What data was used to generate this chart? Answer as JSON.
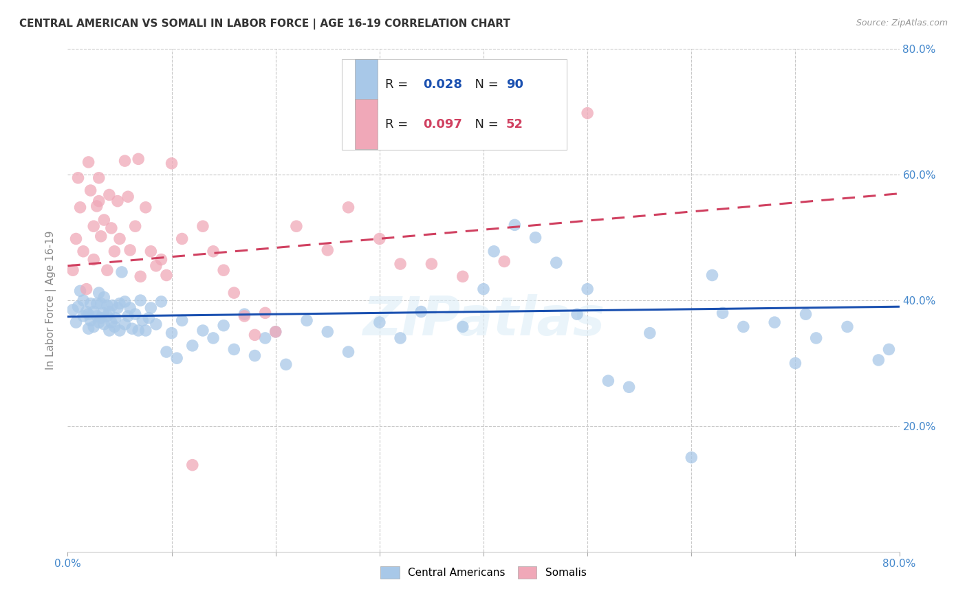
{
  "title": "CENTRAL AMERICAN VS SOMALI IN LABOR FORCE | AGE 16-19 CORRELATION CHART",
  "source_text": "Source: ZipAtlas.com",
  "ylabel": "In Labor Force | Age 16-19",
  "xlim": [
    0.0,
    0.8
  ],
  "ylim": [
    0.0,
    0.8
  ],
  "legend_blue_label": "Central Americans",
  "legend_pink_label": "Somalis",
  "R_blue": 0.028,
  "N_blue": 90,
  "R_pink": 0.097,
  "N_pink": 52,
  "blue_color": "#a8c8e8",
  "pink_color": "#f0a8b8",
  "blue_line_color": "#1a50b0",
  "pink_line_color": "#d04060",
  "watermark": "ZIPatlas",
  "background_color": "#ffffff",
  "grid_color": "#c8c8c8",
  "blue_scatter_x": [
    0.005,
    0.008,
    0.01,
    0.012,
    0.015,
    0.015,
    0.018,
    0.02,
    0.02,
    0.022,
    0.022,
    0.025,
    0.025,
    0.028,
    0.028,
    0.03,
    0.03,
    0.032,
    0.032,
    0.034,
    0.035,
    0.035,
    0.038,
    0.038,
    0.04,
    0.04,
    0.042,
    0.043,
    0.045,
    0.046,
    0.048,
    0.05,
    0.05,
    0.052,
    0.055,
    0.055,
    0.058,
    0.06,
    0.062,
    0.065,
    0.068,
    0.07,
    0.072,
    0.075,
    0.078,
    0.08,
    0.085,
    0.09,
    0.095,
    0.1,
    0.105,
    0.11,
    0.12,
    0.13,
    0.14,
    0.15,
    0.16,
    0.17,
    0.18,
    0.19,
    0.2,
    0.21,
    0.23,
    0.25,
    0.27,
    0.3,
    0.32,
    0.34,
    0.38,
    0.4,
    0.41,
    0.43,
    0.45,
    0.47,
    0.49,
    0.5,
    0.52,
    0.54,
    0.56,
    0.6,
    0.62,
    0.63,
    0.65,
    0.68,
    0.7,
    0.71,
    0.72,
    0.75,
    0.78,
    0.79
  ],
  "blue_scatter_y": [
    0.385,
    0.365,
    0.39,
    0.415,
    0.375,
    0.4,
    0.382,
    0.355,
    0.378,
    0.368,
    0.395,
    0.382,
    0.358,
    0.375,
    0.395,
    0.365,
    0.412,
    0.372,
    0.395,
    0.38,
    0.362,
    0.405,
    0.375,
    0.392,
    0.352,
    0.382,
    0.365,
    0.392,
    0.358,
    0.372,
    0.388,
    0.352,
    0.395,
    0.445,
    0.398,
    0.362,
    0.375,
    0.388,
    0.355,
    0.378,
    0.352,
    0.4,
    0.368,
    0.352,
    0.372,
    0.388,
    0.362,
    0.398,
    0.318,
    0.348,
    0.308,
    0.368,
    0.328,
    0.352,
    0.34,
    0.36,
    0.322,
    0.378,
    0.312,
    0.34,
    0.35,
    0.298,
    0.368,
    0.35,
    0.318,
    0.365,
    0.34,
    0.382,
    0.358,
    0.418,
    0.478,
    0.52,
    0.5,
    0.46,
    0.378,
    0.418,
    0.272,
    0.262,
    0.348,
    0.15,
    0.44,
    0.38,
    0.358,
    0.365,
    0.3,
    0.378,
    0.34,
    0.358,
    0.305,
    0.322
  ],
  "pink_scatter_x": [
    0.005,
    0.008,
    0.01,
    0.012,
    0.015,
    0.018,
    0.02,
    0.022,
    0.025,
    0.025,
    0.028,
    0.03,
    0.03,
    0.032,
    0.035,
    0.038,
    0.04,
    0.042,
    0.045,
    0.048,
    0.05,
    0.055,
    0.058,
    0.06,
    0.065,
    0.068,
    0.07,
    0.075,
    0.08,
    0.085,
    0.09,
    0.095,
    0.1,
    0.11,
    0.12,
    0.13,
    0.14,
    0.15,
    0.16,
    0.17,
    0.18,
    0.19,
    0.2,
    0.22,
    0.25,
    0.27,
    0.3,
    0.32,
    0.35,
    0.38,
    0.42,
    0.5
  ],
  "pink_scatter_y": [
    0.448,
    0.498,
    0.595,
    0.548,
    0.478,
    0.418,
    0.62,
    0.575,
    0.518,
    0.465,
    0.55,
    0.595,
    0.558,
    0.502,
    0.528,
    0.448,
    0.568,
    0.515,
    0.478,
    0.558,
    0.498,
    0.622,
    0.565,
    0.48,
    0.518,
    0.625,
    0.438,
    0.548,
    0.478,
    0.455,
    0.465,
    0.44,
    0.618,
    0.498,
    0.138,
    0.518,
    0.478,
    0.448,
    0.412,
    0.375,
    0.345,
    0.38,
    0.35,
    0.518,
    0.48,
    0.548,
    0.498,
    0.458,
    0.458,
    0.438,
    0.462,
    0.698
  ],
  "blue_trend_x0": 0.0,
  "blue_trend_y0": 0.374,
  "blue_trend_x1": 0.8,
  "blue_trend_y1": 0.39,
  "pink_trend_x0": 0.0,
  "pink_trend_y0": 0.455,
  "pink_trend_x1": 0.8,
  "pink_trend_y1": 0.57
}
